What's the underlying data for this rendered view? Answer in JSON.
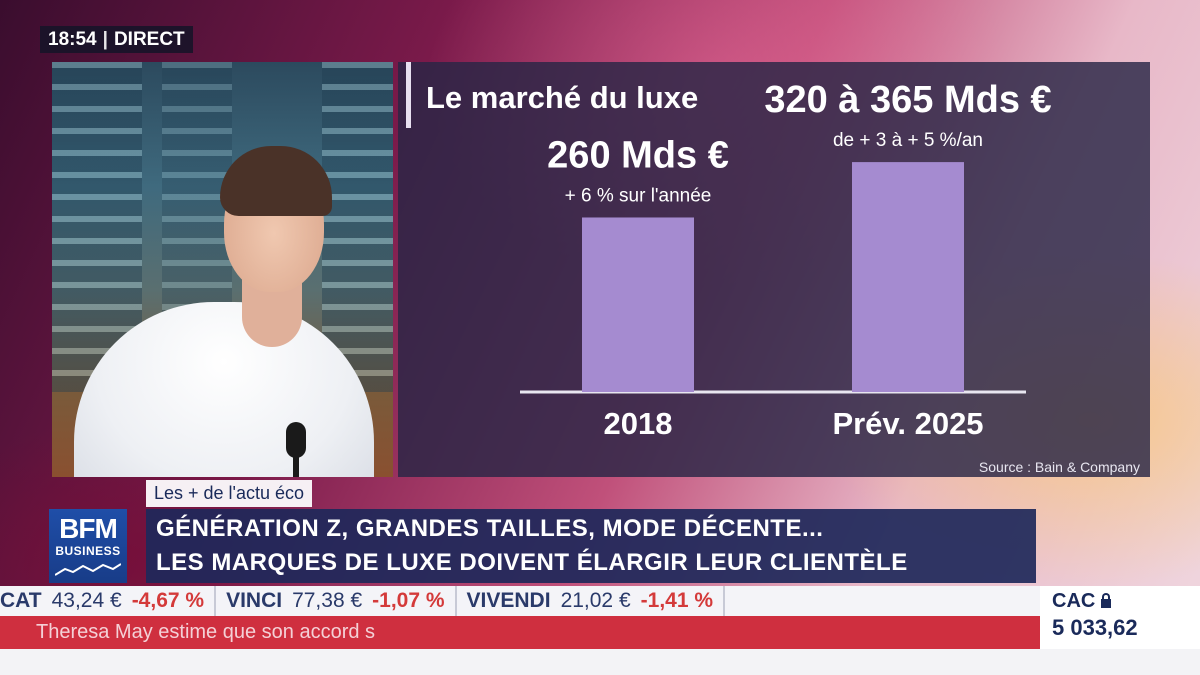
{
  "clock": {
    "time": "18:54",
    "label": "DIRECT"
  },
  "chart_data": {
    "type": "bar",
    "title": "Le marché du luxe",
    "categories": [
      "2018",
      "Prév. 2025"
    ],
    "values": [
      260,
      342.5
    ],
    "value_labels": [
      "260 Mds €",
      "320 à 365 Mds €"
    ],
    "sub_labels": [
      "+ 6 % sur l'année",
      "de + 3 à + 5 %/an"
    ],
    "bar_color": "#a58bd0",
    "ylim": [
      0,
      365
    ],
    "source": "Source : Bain & Company"
  },
  "lower_third": {
    "tag": "Les + de l'actu éco",
    "headline_line1": "GÉNÉRATION Z, GRANDES TAILLES, MODE DÉCENTE...",
    "headline_line2": "LES MARQUES DE LUXE DOIVENT ÉLARGIR LEUR CLIENTÈLE"
  },
  "logo": {
    "line1": "BFM",
    "line2": "BUSINESS"
  },
  "ticker": [
    {
      "name": "CAT",
      "price": "43,24 €",
      "change": "-4,67 %"
    },
    {
      "name": "VINCI",
      "price": "77,38 €",
      "change": "-1,07 %"
    },
    {
      "name": "VIVENDI",
      "price": "21,02 €",
      "change": "-1,41 %"
    }
  ],
  "news": "Theresa May estime que son accord s",
  "index": {
    "name": "CAC",
    "value": "5 033,62"
  },
  "colors": {
    "accent_red": "#d43a3a",
    "navy": "#1a2a5a",
    "bar": "#a58bd0"
  }
}
